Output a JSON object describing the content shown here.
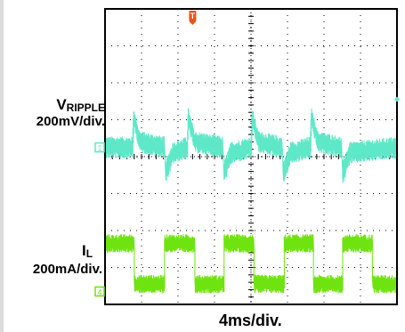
{
  "chart_data": {
    "type": "line",
    "title": "",
    "xlabel": "4ms/div.",
    "ylabel": "",
    "grid": true,
    "divisions": {
      "x": 8,
      "y": 8
    },
    "x_unit_per_div_ms": 4,
    "xlim_ms": [
      0,
      32
    ],
    "series": [
      {
        "name_main": "V",
        "name_sub": "RIPPLE",
        "scale": "200mV/div.",
        "channel_marker": "1",
        "color": "#5ee8c8",
        "unit": "mV",
        "points_ms_mV": [
          [
            0,
            0
          ],
          [
            3.0,
            0
          ],
          [
            3.1,
            160
          ],
          [
            3.8,
            30
          ],
          [
            6.5,
            0
          ],
          [
            6.6,
            -140
          ],
          [
            7.4,
            -30
          ],
          [
            9.0,
            0
          ],
          [
            9.1,
            160
          ],
          [
            9.8,
            30
          ],
          [
            12.9,
            0
          ],
          [
            13.0,
            -140
          ],
          [
            13.8,
            -30
          ],
          [
            16.0,
            0
          ],
          [
            16.1,
            160
          ],
          [
            16.8,
            30
          ],
          [
            19.4,
            0
          ],
          [
            19.5,
            -140
          ],
          [
            20.3,
            -30
          ],
          [
            22.5,
            0
          ],
          [
            22.6,
            160
          ],
          [
            23.3,
            30
          ],
          [
            25.9,
            0
          ],
          [
            26.0,
            -140
          ],
          [
            26.8,
            -30
          ],
          [
            32,
            0
          ]
        ],
        "noise_pp_mV": 120
      },
      {
        "name_main": "I",
        "name_sub": "L",
        "scale": "200mA/div.",
        "channel_marker": "4",
        "color": "#6fe30f",
        "unit": "mA",
        "points_ms_mA": [
          [
            0,
            80
          ],
          [
            3.2,
            80
          ],
          [
            3.2,
            -140
          ],
          [
            6.5,
            -140
          ],
          [
            6.5,
            80
          ],
          [
            9.8,
            80
          ],
          [
            9.8,
            -140
          ],
          [
            13.0,
            -140
          ],
          [
            13.0,
            80
          ],
          [
            16.3,
            80
          ],
          [
            16.3,
            -140
          ],
          [
            19.6,
            -140
          ],
          [
            19.6,
            80
          ],
          [
            22.8,
            80
          ],
          [
            22.8,
            -140
          ],
          [
            26.0,
            -140
          ],
          [
            26.0,
            80
          ],
          [
            29.3,
            80
          ],
          [
            29.3,
            -140
          ],
          [
            32,
            -140
          ]
        ],
        "noise_pp_mA": 100
      }
    ],
    "trigger_marker": {
      "label": "T",
      "color": "#e8541a",
      "x_ms": 9.6
    }
  }
}
